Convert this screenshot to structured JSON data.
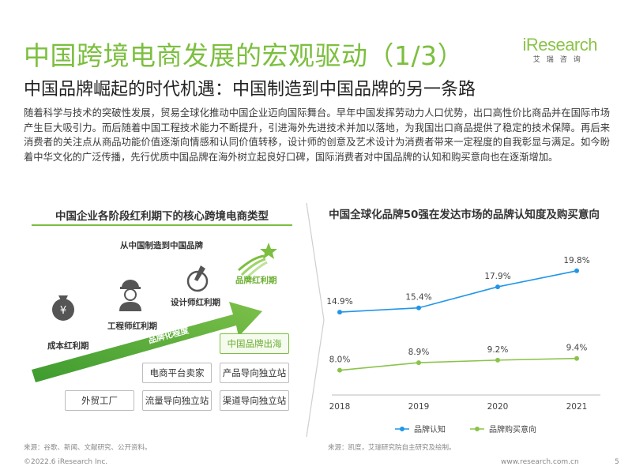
{
  "header": {
    "title": "中国跨境电商发展的宏观驱动（1/3）",
    "subtitle": "中国品牌崛起的时代机遇：中国制造到中国品牌的另一条路",
    "logo_brand": "iResearch",
    "logo_cn": "艾瑞咨询"
  },
  "body_text": "随着科学与技术的突破性发展，贸易全球化推动中国企业迈向国际舞台。早年中国发挥劳动力人口优势，出口高性价比商品并在国际市场产生巨大吸引力。而后随着中国工程技术能力不断提升，引进海外先进技术并加以落地，为我国出口商品提供了稳定的技术保障。再后来消费者的关注点从商品功能价值逐渐向情感和认同价值转移，设计师的创意及艺术设计为消费者带来一定程度的自我彰显与满足。如今盼着中华文化的广泛传播，先行优质中国品牌在海外树立起良好口碑，国际消费者对中国品牌的认知和购买意向也在逐渐增加。",
  "left_panel": {
    "title": "中国企业各阶段红利期下的核心跨境电商类型",
    "top_label": "从中国制造到中国品牌",
    "arrow_label": "品牌化程度",
    "stages": [
      {
        "label": "成本红利期",
        "icon": "money-bag-icon"
      },
      {
        "label": "工程师红利期",
        "icon": "engineer-icon"
      },
      {
        "label": "设计师红利期",
        "icon": "design-icon"
      },
      {
        "label": "品牌红利期",
        "icon": "star-icon"
      }
    ],
    "boxes": {
      "foreign_trade": "外贸工厂",
      "platform_seller": "电商平台卖家",
      "traffic_site": "流量导向独立站",
      "product_site": "产品导向独立站",
      "channel_site": "渠道导向独立站",
      "brand_overseas": "中国品牌出海"
    },
    "source": "来源：谷歌、新闻、文献研究、公开资料。"
  },
  "chart_data": {
    "type": "line",
    "title": "中国全球化品牌50强在发达市场的品牌认知度及购买意向",
    "x": [
      "2018",
      "2019",
      "2020",
      "2021"
    ],
    "series": [
      {
        "name": "品牌认知",
        "values": [
          14.9,
          15.4,
          17.9,
          19.8
        ],
        "labels": [
          "14.9%",
          "15.4%",
          "17.9%",
          "19.8%"
        ],
        "color": "#2196e8"
      },
      {
        "name": "品牌购买意向",
        "values": [
          8.0,
          8.9,
          9.2,
          9.4
        ],
        "labels": [
          "8.0%",
          "8.9%",
          "9.2%",
          "9.4%"
        ],
        "color": "#8bc34a"
      }
    ],
    "ylim": [
      6,
      21
    ],
    "grid": false,
    "legend": "bottom",
    "source": "来源：凯度，艾瑞研究院自主研究及绘制。"
  },
  "footer": {
    "copyright": "©2022.6 iResearch Inc.",
    "url": "www.research.com.cn",
    "page": "5"
  }
}
